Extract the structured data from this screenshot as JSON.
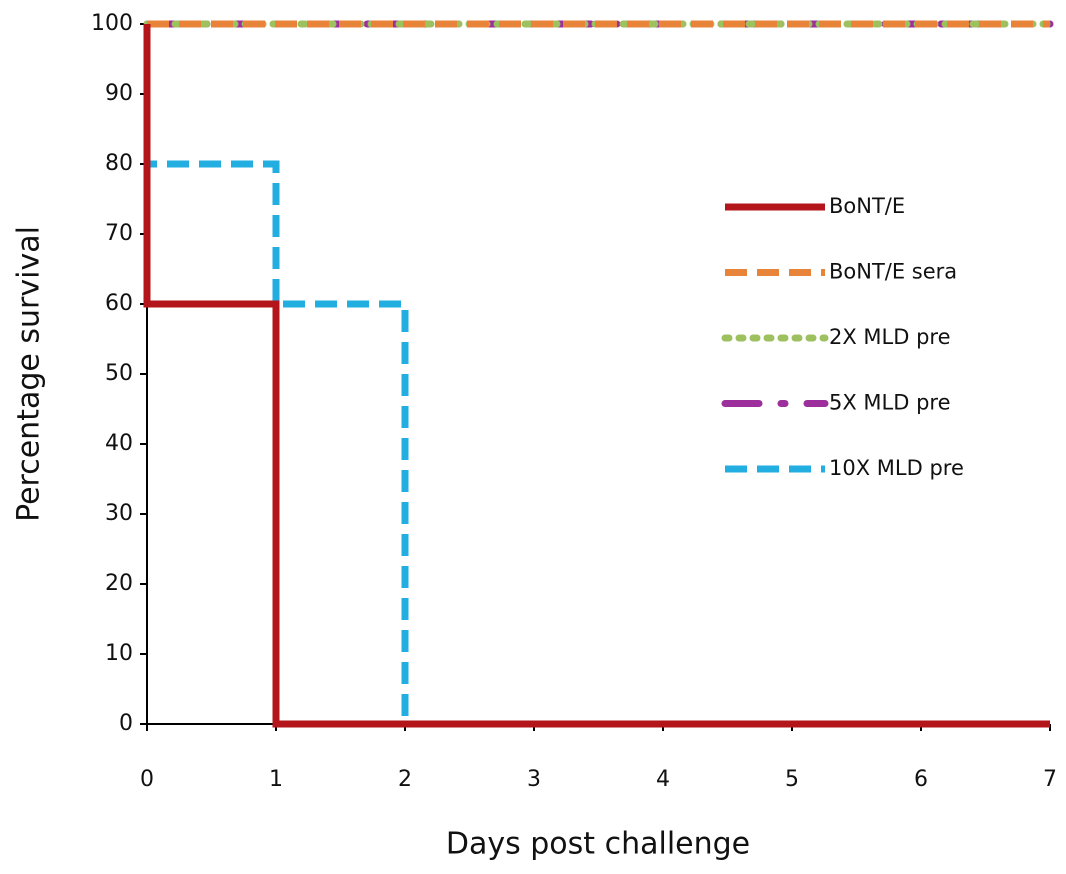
{
  "chart_data": {
    "type": "line",
    "xlabel": "Days post challenge",
    "ylabel": "Percentage survival",
    "xlim": [
      0,
      7
    ],
    "xticks": [
      0,
      1,
      2,
      3,
      4,
      5,
      6,
      7
    ],
    "ylim": [
      0,
      100
    ],
    "yticks": [
      0,
      10,
      20,
      30,
      40,
      50,
      60,
      70,
      80,
      90,
      100
    ],
    "legend": "center right",
    "series": [
      {
        "name": "BoNT/E",
        "color": "#b3151b",
        "style": "solid",
        "x": [
          0,
          0,
          1,
          1,
          7
        ],
        "values": [
          100,
          60,
          60,
          0,
          0
        ]
      },
      {
        "name": "BoNT/E sera",
        "color": "#e8833a",
        "style": "dashed",
        "x": [
          0,
          7
        ],
        "values": [
          100,
          100
        ]
      },
      {
        "name": "2X MLD pre",
        "color": "#9dc15f",
        "style": "dotted",
        "x": [
          0,
          7
        ],
        "values": [
          100,
          100
        ]
      },
      {
        "name": "5X MLD pre",
        "color": "#9c2f9c",
        "style": "dash-dot",
        "x": [
          0,
          7
        ],
        "values": [
          100,
          100
        ]
      },
      {
        "name": "10X MLD pre",
        "color": "#22aee0",
        "style": "dashed",
        "x": [
          0,
          0,
          1,
          1,
          2,
          2,
          7
        ],
        "values": [
          100,
          80,
          80,
          60,
          60,
          0,
          0
        ]
      }
    ]
  }
}
